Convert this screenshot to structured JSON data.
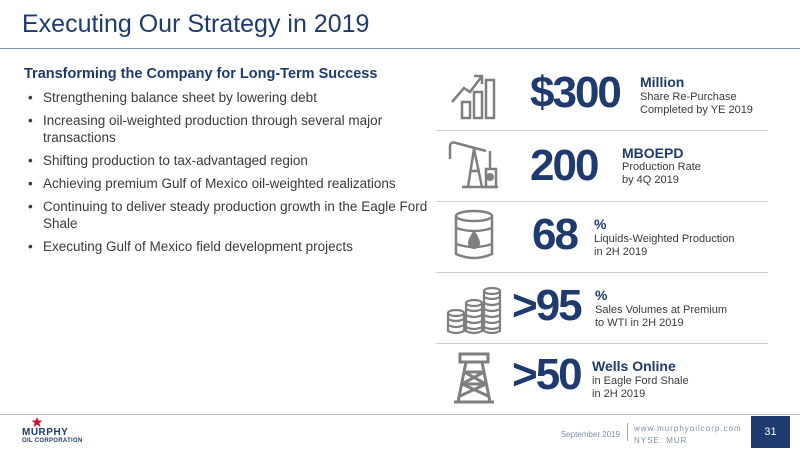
{
  "slide": {
    "title": "Executing Our Strategy in 2019",
    "subtitle": "Transforming the Company for Long-Term Success",
    "bullets": [
      "Strengthening balance sheet by lowering debt",
      "Increasing oil-weighted production through several major transactions",
      "Shifting production to tax-advantaged region",
      "Achieving premium Gulf of Mexico oil-weighted realizations",
      "Continuing to deliver steady production growth in the Eagle Ford Shale",
      "Executing Gulf of Mexico field development projects"
    ]
  },
  "stats": [
    {
      "icon": "growth-chart-icon",
      "value": "$300",
      "unit": "Million",
      "desc1": "Share Re-Purchase",
      "desc2": "Completed by YE 2019"
    },
    {
      "icon": "pumpjack-icon",
      "value": "200",
      "unit": "MBOEPD",
      "desc1": "Production Rate",
      "desc2": "by 4Q 2019"
    },
    {
      "icon": "oil-barrel-icon",
      "value": "68",
      "unit": "%",
      "desc1": "Liquids-Weighted Production",
      "desc2": "in 2H 2019"
    },
    {
      "icon": "coin-stacks-icon",
      "value": ">95",
      "unit": "%",
      "desc1": "Sales Volumes at Premium",
      "desc2": "to WTI in 2H 2019"
    },
    {
      "icon": "oil-derrick-icon",
      "value": ">50",
      "unit": "Wells Online",
      "desc1": "in Eagle Ford Shale",
      "desc2": "in 2H 2019"
    }
  ],
  "footer": {
    "logo_line1": "MURPHY",
    "logo_line2": "OIL CORPORATION",
    "date": "September 2019",
    "website": "www.murphyoilcorp.com",
    "ticker": "NYSE: MUR",
    "page_number": "31"
  },
  "colors": {
    "navy": "#1e3a6e",
    "icon_gray": "#7f7f7f",
    "text": "#3a3a3a"
  }
}
